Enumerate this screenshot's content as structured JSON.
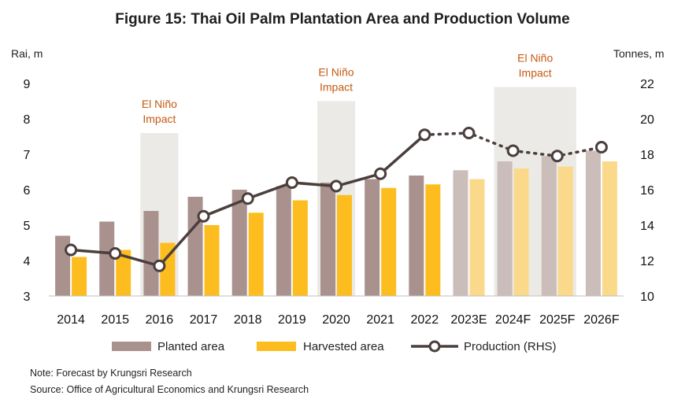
{
  "chart_data": {
    "type": "bar",
    "title": "Figure 15: Thai Oil Palm Plantation Area and Production Volume",
    "left_axis_label": "Rai, m",
    "right_axis_label": "Tonnes, m",
    "left_ylim": [
      3,
      9
    ],
    "left_ticks": [
      3,
      4,
      5,
      6,
      7,
      8,
      9
    ],
    "right_ylim": [
      10,
      22
    ],
    "right_ticks": [
      10,
      12,
      14,
      16,
      18,
      20,
      22
    ],
    "categories": [
      "2014",
      "2015",
      "2016",
      "2017",
      "2018",
      "2019",
      "2020",
      "2021",
      "2022",
      "2023E",
      "2024F",
      "2025F",
      "2026F"
    ],
    "forecast_start_index": 9,
    "series": [
      {
        "name": "Planted area",
        "type": "bar",
        "axis": "left",
        "color": "#a9928e",
        "forecast_color": "#cbbdb9",
        "values": [
          4.7,
          5.1,
          5.4,
          5.8,
          6.0,
          6.1,
          6.2,
          6.3,
          6.4,
          6.55,
          6.8,
          6.95,
          7.1
        ]
      },
      {
        "name": "Harvested area",
        "type": "bar",
        "axis": "left",
        "color": "#fdbd1f",
        "forecast_color": "#fbd98a",
        "values": [
          4.1,
          4.3,
          4.5,
          5.0,
          5.35,
          5.7,
          5.85,
          6.05,
          6.15,
          6.3,
          6.6,
          6.65,
          6.8
        ]
      },
      {
        "name": "Production (RHS)",
        "type": "line",
        "axis": "right",
        "color": "#4a3f3c",
        "values": [
          12.6,
          12.4,
          11.7,
          14.5,
          15.5,
          16.4,
          16.2,
          16.9,
          19.1,
          19.2,
          18.2,
          17.9,
          18.4
        ]
      }
    ],
    "shaded_periods": [
      {
        "label_line1": "El Niño",
        "label_line2": "Impact",
        "category": "2016",
        "top_value": 7.6
      },
      {
        "label_line1": "El Niño",
        "label_line2": "Impact",
        "category": "2020",
        "top_value": 8.5
      },
      {
        "label_line1": "El Niño",
        "label_line2": "Impact",
        "category_from": "2024F",
        "category_to": "2025F",
        "top_value": 8.9
      }
    ],
    "legend": [
      "Planted area",
      "Harvested area",
      "Production (RHS)"
    ],
    "legend_position": "bottom"
  },
  "notes": {
    "note": "Note: Forecast by Krungsri Research",
    "source": "Source: Office of Agricultural Economics and Krungsri Research"
  },
  "colors": {
    "el_nino_shade": "#eceae6",
    "el_nino_text": "#c55a11"
  }
}
